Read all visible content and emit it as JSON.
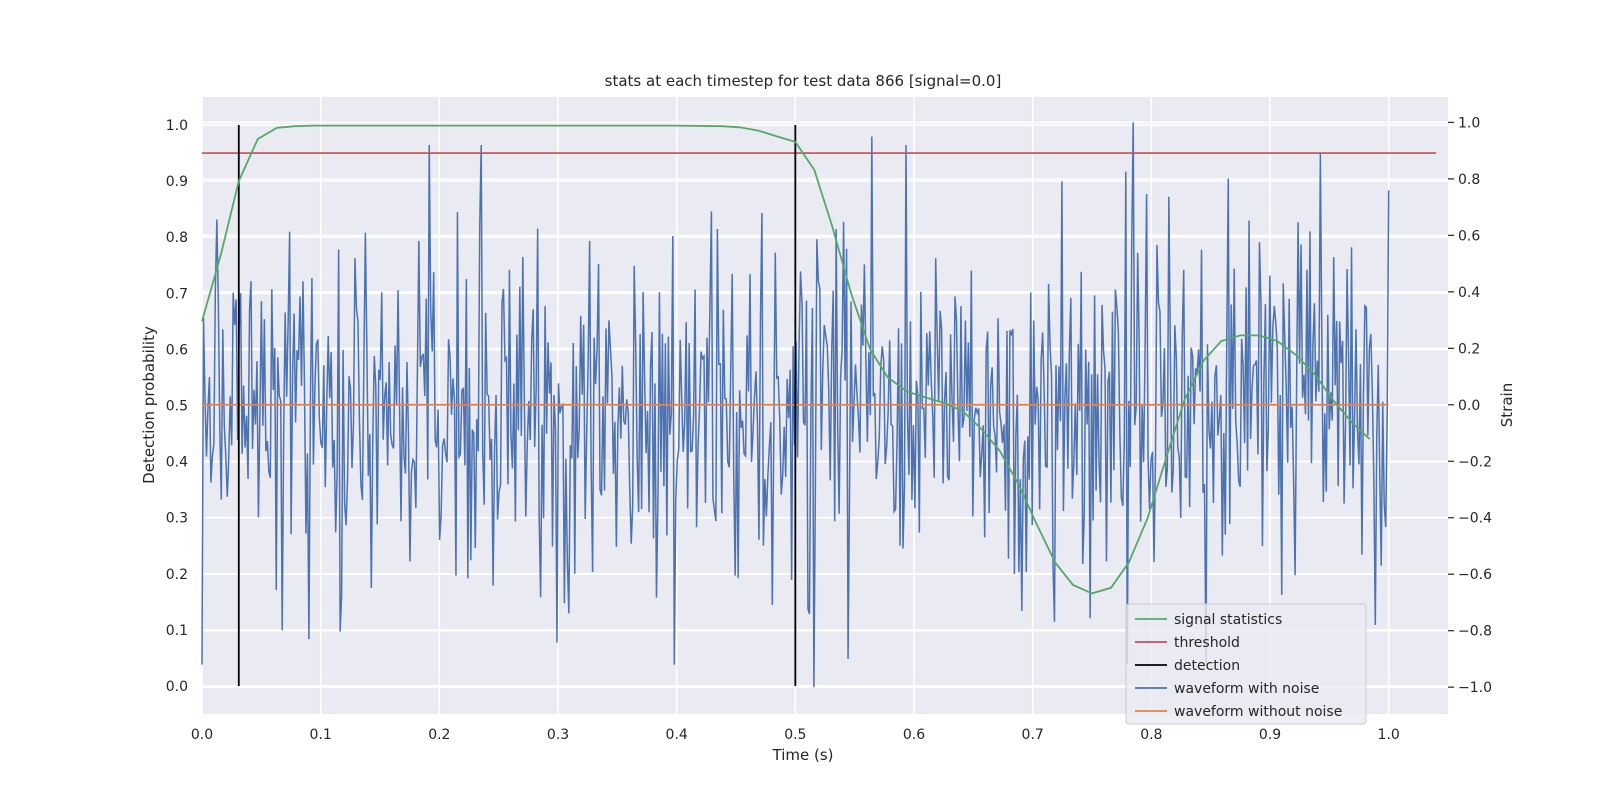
{
  "chart_data": {
    "type": "line",
    "title": "stats at each timestep for test data 866 [signal=0.0]",
    "xlabel": "Time (s)",
    "ylabel": "Detection probability",
    "ylabel_right": "Strain",
    "xlim": [
      0.0,
      1.05
    ],
    "ylim": [
      -0.05,
      1.05
    ],
    "ylim_right": [
      -1.095,
      1.09
    ],
    "xticks": [
      0.0,
      0.1,
      0.2,
      0.3,
      0.4,
      0.5,
      0.6,
      0.7,
      0.8,
      0.9,
      1.0
    ],
    "yticks": [
      0.0,
      0.1,
      0.2,
      0.3,
      0.4,
      0.5,
      0.6,
      0.7,
      0.8,
      0.9,
      1.0
    ],
    "yticks_right": [
      -1.0,
      -0.8,
      -0.6,
      -0.4,
      -0.2,
      0.0,
      0.2,
      0.4,
      0.6,
      0.8,
      1.0
    ],
    "grid": true,
    "legend_position": "bottom-right",
    "legend": [
      "signal statistics",
      "threshold",
      "detection",
      "waveform with noise",
      "waveform without noise"
    ],
    "series": [
      {
        "name": "signal statistics",
        "axis": "left",
        "color": "#55a868",
        "x": [
          0.0,
          0.016,
          0.031,
          0.047,
          0.063,
          0.078,
          0.094,
          0.109,
          0.125,
          0.2,
          0.3,
          0.4,
          0.438,
          0.453,
          0.469,
          0.484,
          0.5,
          0.516,
          0.531,
          0.547,
          0.563,
          0.578,
          0.594,
          0.609,
          0.625,
          0.641,
          0.656,
          0.672,
          0.688,
          0.703,
          0.719,
          0.734,
          0.75,
          0.766,
          0.781,
          0.797,
          0.813,
          0.828,
          0.844,
          0.859,
          0.875,
          0.891,
          0.906,
          0.922,
          0.938,
          0.953,
          0.969,
          0.984
        ],
        "y": [
          0.65,
          0.77,
          0.9,
          0.975,
          0.995,
          0.998,
          0.999,
          0.999,
          0.999,
          0.999,
          0.999,
          0.999,
          0.998,
          0.996,
          0.99,
          0.98,
          0.97,
          0.92,
          0.82,
          0.7,
          0.6,
          0.55,
          0.525,
          0.515,
          0.505,
          0.49,
          0.46,
          0.42,
          0.36,
          0.29,
          0.22,
          0.18,
          0.165,
          0.175,
          0.22,
          0.3,
          0.41,
          0.51,
          0.58,
          0.615,
          0.625,
          0.625,
          0.615,
          0.59,
          0.555,
          0.51,
          0.47,
          0.44
        ]
      },
      {
        "name": "threshold",
        "axis": "left",
        "color": "#c44e52",
        "x": [
          0.0,
          1.04
        ],
        "y": [
          0.95,
          0.95
        ]
      },
      {
        "name": "detection",
        "axis": "left",
        "color": "#000000",
        "x": [
          0.031,
          0.5
        ],
        "y_range": [
          0.0,
          1.0
        ]
      },
      {
        "name": "waveform with noise",
        "axis": "right",
        "color": "#4c72b0",
        "x_range": [
          0.0,
          1.0
        ],
        "n_points": 800,
        "y_range": [
          -1.0,
          1.0
        ],
        "notable_peaks": [
          {
            "x": 0.565,
            "y": 0.95
          },
          {
            "x": 0.785,
            "y": 1.0
          },
          {
            "x": 0.943,
            "y": 0.89
          },
          {
            "x": 0.516,
            "y": -1.0
          },
          {
            "x": 0.545,
            "y": -0.9
          },
          {
            "x": 0.09,
            "y": -0.83
          }
        ]
      },
      {
        "name": "waveform without noise",
        "axis": "right",
        "color": "#dd8452",
        "x": [
          0.0,
          1.0
        ],
        "y": [
          0.0,
          0.0
        ]
      }
    ]
  }
}
